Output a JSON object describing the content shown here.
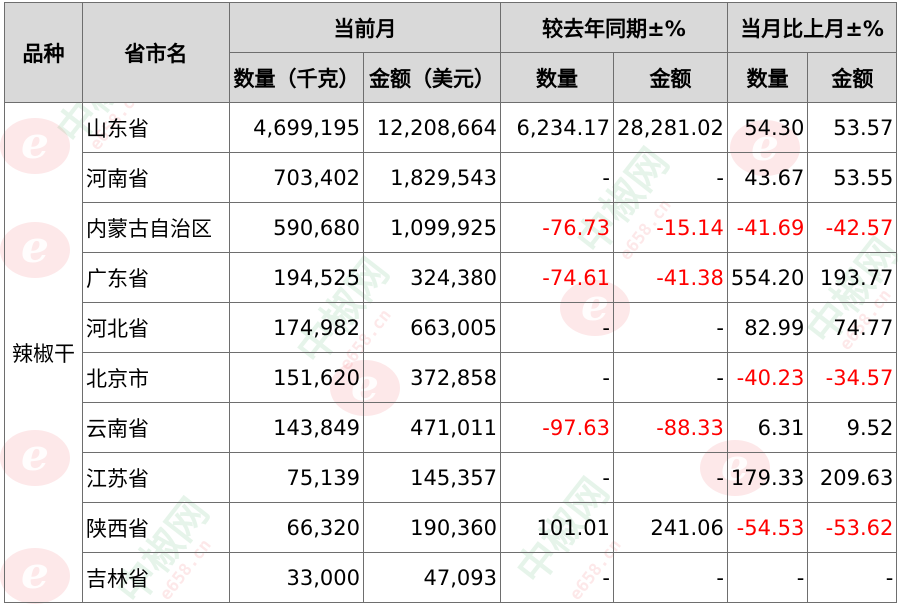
{
  "header": {
    "col_variety": "品种",
    "col_province": "省市名",
    "group_current": "当前月",
    "group_yoy": "较去年同期±%",
    "group_mom": "当月比上月±%",
    "sub_qty_kg": "数量（千克）",
    "sub_amount_usd": "金额（美元）",
    "sub_qty": "数量",
    "sub_amount": "金额"
  },
  "variety": "辣椒干",
  "rows": [
    {
      "province": "山东省",
      "qty": "4,699,195",
      "amount": "12,208,664",
      "yoy_qty": "6,234.17",
      "yoy_amount": "28,281.02",
      "mom_qty": "54.30",
      "mom_amount": "53.57"
    },
    {
      "province": "河南省",
      "qty": "703,402",
      "amount": "1,829,543",
      "yoy_qty": "-",
      "yoy_amount": "-",
      "mom_qty": "43.67",
      "mom_amount": "53.55"
    },
    {
      "province": "内蒙古自治区",
      "qty": "590,680",
      "amount": "1,099,925",
      "yoy_qty": "-76.73",
      "yoy_amount": "-15.14",
      "mom_qty": "-41.69",
      "mom_amount": "-42.57"
    },
    {
      "province": "广东省",
      "qty": "194,525",
      "amount": "324,380",
      "yoy_qty": "-74.61",
      "yoy_amount": "-41.38",
      "mom_qty": "554.20",
      "mom_amount": "193.77"
    },
    {
      "province": "河北省",
      "qty": "174,982",
      "amount": "663,005",
      "yoy_qty": "-",
      "yoy_amount": "-",
      "mom_qty": "82.99",
      "mom_amount": "74.77"
    },
    {
      "province": "北京市",
      "qty": "151,620",
      "amount": "372,858",
      "yoy_qty": "-",
      "yoy_amount": "-",
      "mom_qty": "-40.23",
      "mom_amount": "-34.57"
    },
    {
      "province": "云南省",
      "qty": "143,849",
      "amount": "471,011",
      "yoy_qty": "-97.63",
      "yoy_amount": "-88.33",
      "mom_qty": "6.31",
      "mom_amount": "9.52"
    },
    {
      "province": "江苏省",
      "qty": "75,139",
      "amount": "145,357",
      "yoy_qty": "-",
      "yoy_amount": "-",
      "mom_qty": "179.33",
      "mom_amount": "209.63"
    },
    {
      "province": "陕西省",
      "qty": "66,320",
      "amount": "190,360",
      "yoy_qty": "101.01",
      "yoy_amount": "241.06",
      "mom_qty": "-54.53",
      "mom_amount": "-53.62"
    },
    {
      "province": "吉林省",
      "qty": "33,000",
      "amount": "47,093",
      "yoy_qty": "-",
      "yoy_amount": "-",
      "mom_qty": "-",
      "mom_amount": "-"
    }
  ],
  "watermark": {
    "logo_letter": "e",
    "site_name": "中椒网",
    "site_url": "e658.cn"
  },
  "colors": {
    "negative": "#ff0000",
    "header_bg": "#d9d9d9"
  }
}
